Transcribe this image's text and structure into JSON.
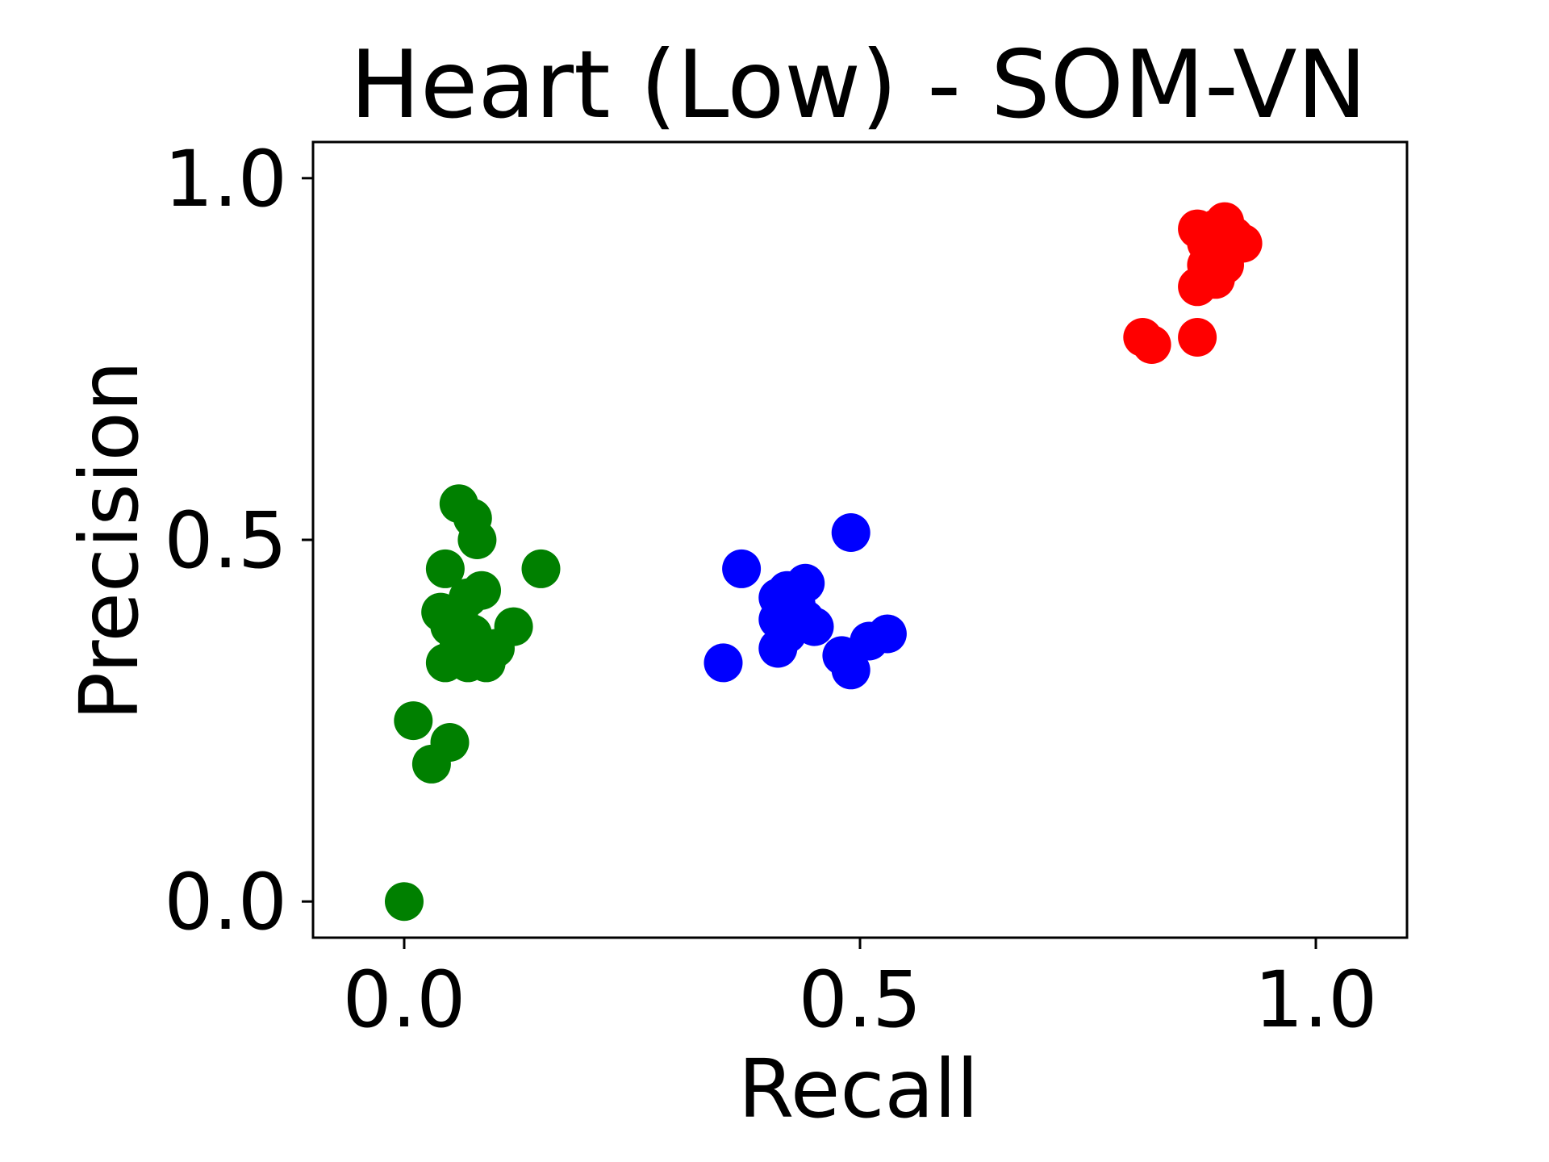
{
  "chart_data": {
    "type": "scatter",
    "title": "Heart (Low) - SOM-VN",
    "xlabel": "Recall",
    "ylabel": "Precision",
    "xlim": [
      -0.1,
      1.1
    ],
    "ylim": [
      -0.05,
      1.05
    ],
    "xticks": [
      0.0,
      0.5,
      1.0
    ],
    "xtick_labels": [
      "0.0",
      "0.5",
      "1.0"
    ],
    "yticks": [
      0.0,
      0.5,
      1.0
    ],
    "ytick_labels": [
      "0.0",
      "0.5",
      "1.0"
    ],
    "grid": false,
    "series": [
      {
        "color": "#008000",
        "points": [
          [
            0.0,
            0.0
          ],
          [
            0.01,
            0.25
          ],
          [
            0.03,
            0.19
          ],
          [
            0.05,
            0.22
          ],
          [
            0.06,
            0.55
          ],
          [
            0.075,
            0.53
          ],
          [
            0.08,
            0.5
          ],
          [
            0.045,
            0.46
          ],
          [
            0.15,
            0.46
          ],
          [
            0.04,
            0.4
          ],
          [
            0.06,
            0.4
          ],
          [
            0.07,
            0.42
          ],
          [
            0.085,
            0.43
          ],
          [
            0.05,
            0.38
          ],
          [
            0.06,
            0.36
          ],
          [
            0.075,
            0.37
          ],
          [
            0.1,
            0.35
          ],
          [
            0.12,
            0.38
          ],
          [
            0.045,
            0.33
          ],
          [
            0.07,
            0.33
          ],
          [
            0.09,
            0.33
          ],
          [
            0.065,
            0.35
          ]
        ]
      },
      {
        "color": "#0000ff",
        "points": [
          [
            0.35,
            0.33
          ],
          [
            0.37,
            0.46
          ],
          [
            0.41,
            0.42
          ],
          [
            0.42,
            0.43
          ],
          [
            0.44,
            0.44
          ],
          [
            0.43,
            0.41
          ],
          [
            0.41,
            0.39
          ],
          [
            0.42,
            0.37
          ],
          [
            0.45,
            0.38
          ],
          [
            0.44,
            0.39
          ],
          [
            0.41,
            0.35
          ],
          [
            0.49,
            0.51
          ],
          [
            0.48,
            0.34
          ],
          [
            0.49,
            0.32
          ],
          [
            0.51,
            0.36
          ],
          [
            0.53,
            0.37
          ]
        ]
      },
      {
        "color": "#ff0000",
        "points": [
          [
            0.81,
            0.78
          ],
          [
            0.82,
            0.77
          ],
          [
            0.87,
            0.78
          ],
          [
            0.87,
            0.85
          ],
          [
            0.89,
            0.86
          ],
          [
            0.88,
            0.88
          ],
          [
            0.87,
            0.93
          ],
          [
            0.89,
            0.93
          ],
          [
            0.9,
            0.94
          ],
          [
            0.91,
            0.92
          ],
          [
            0.92,
            0.91
          ],
          [
            0.9,
            0.9
          ],
          [
            0.9,
            0.88
          ],
          [
            0.88,
            0.91
          ]
        ]
      }
    ]
  }
}
